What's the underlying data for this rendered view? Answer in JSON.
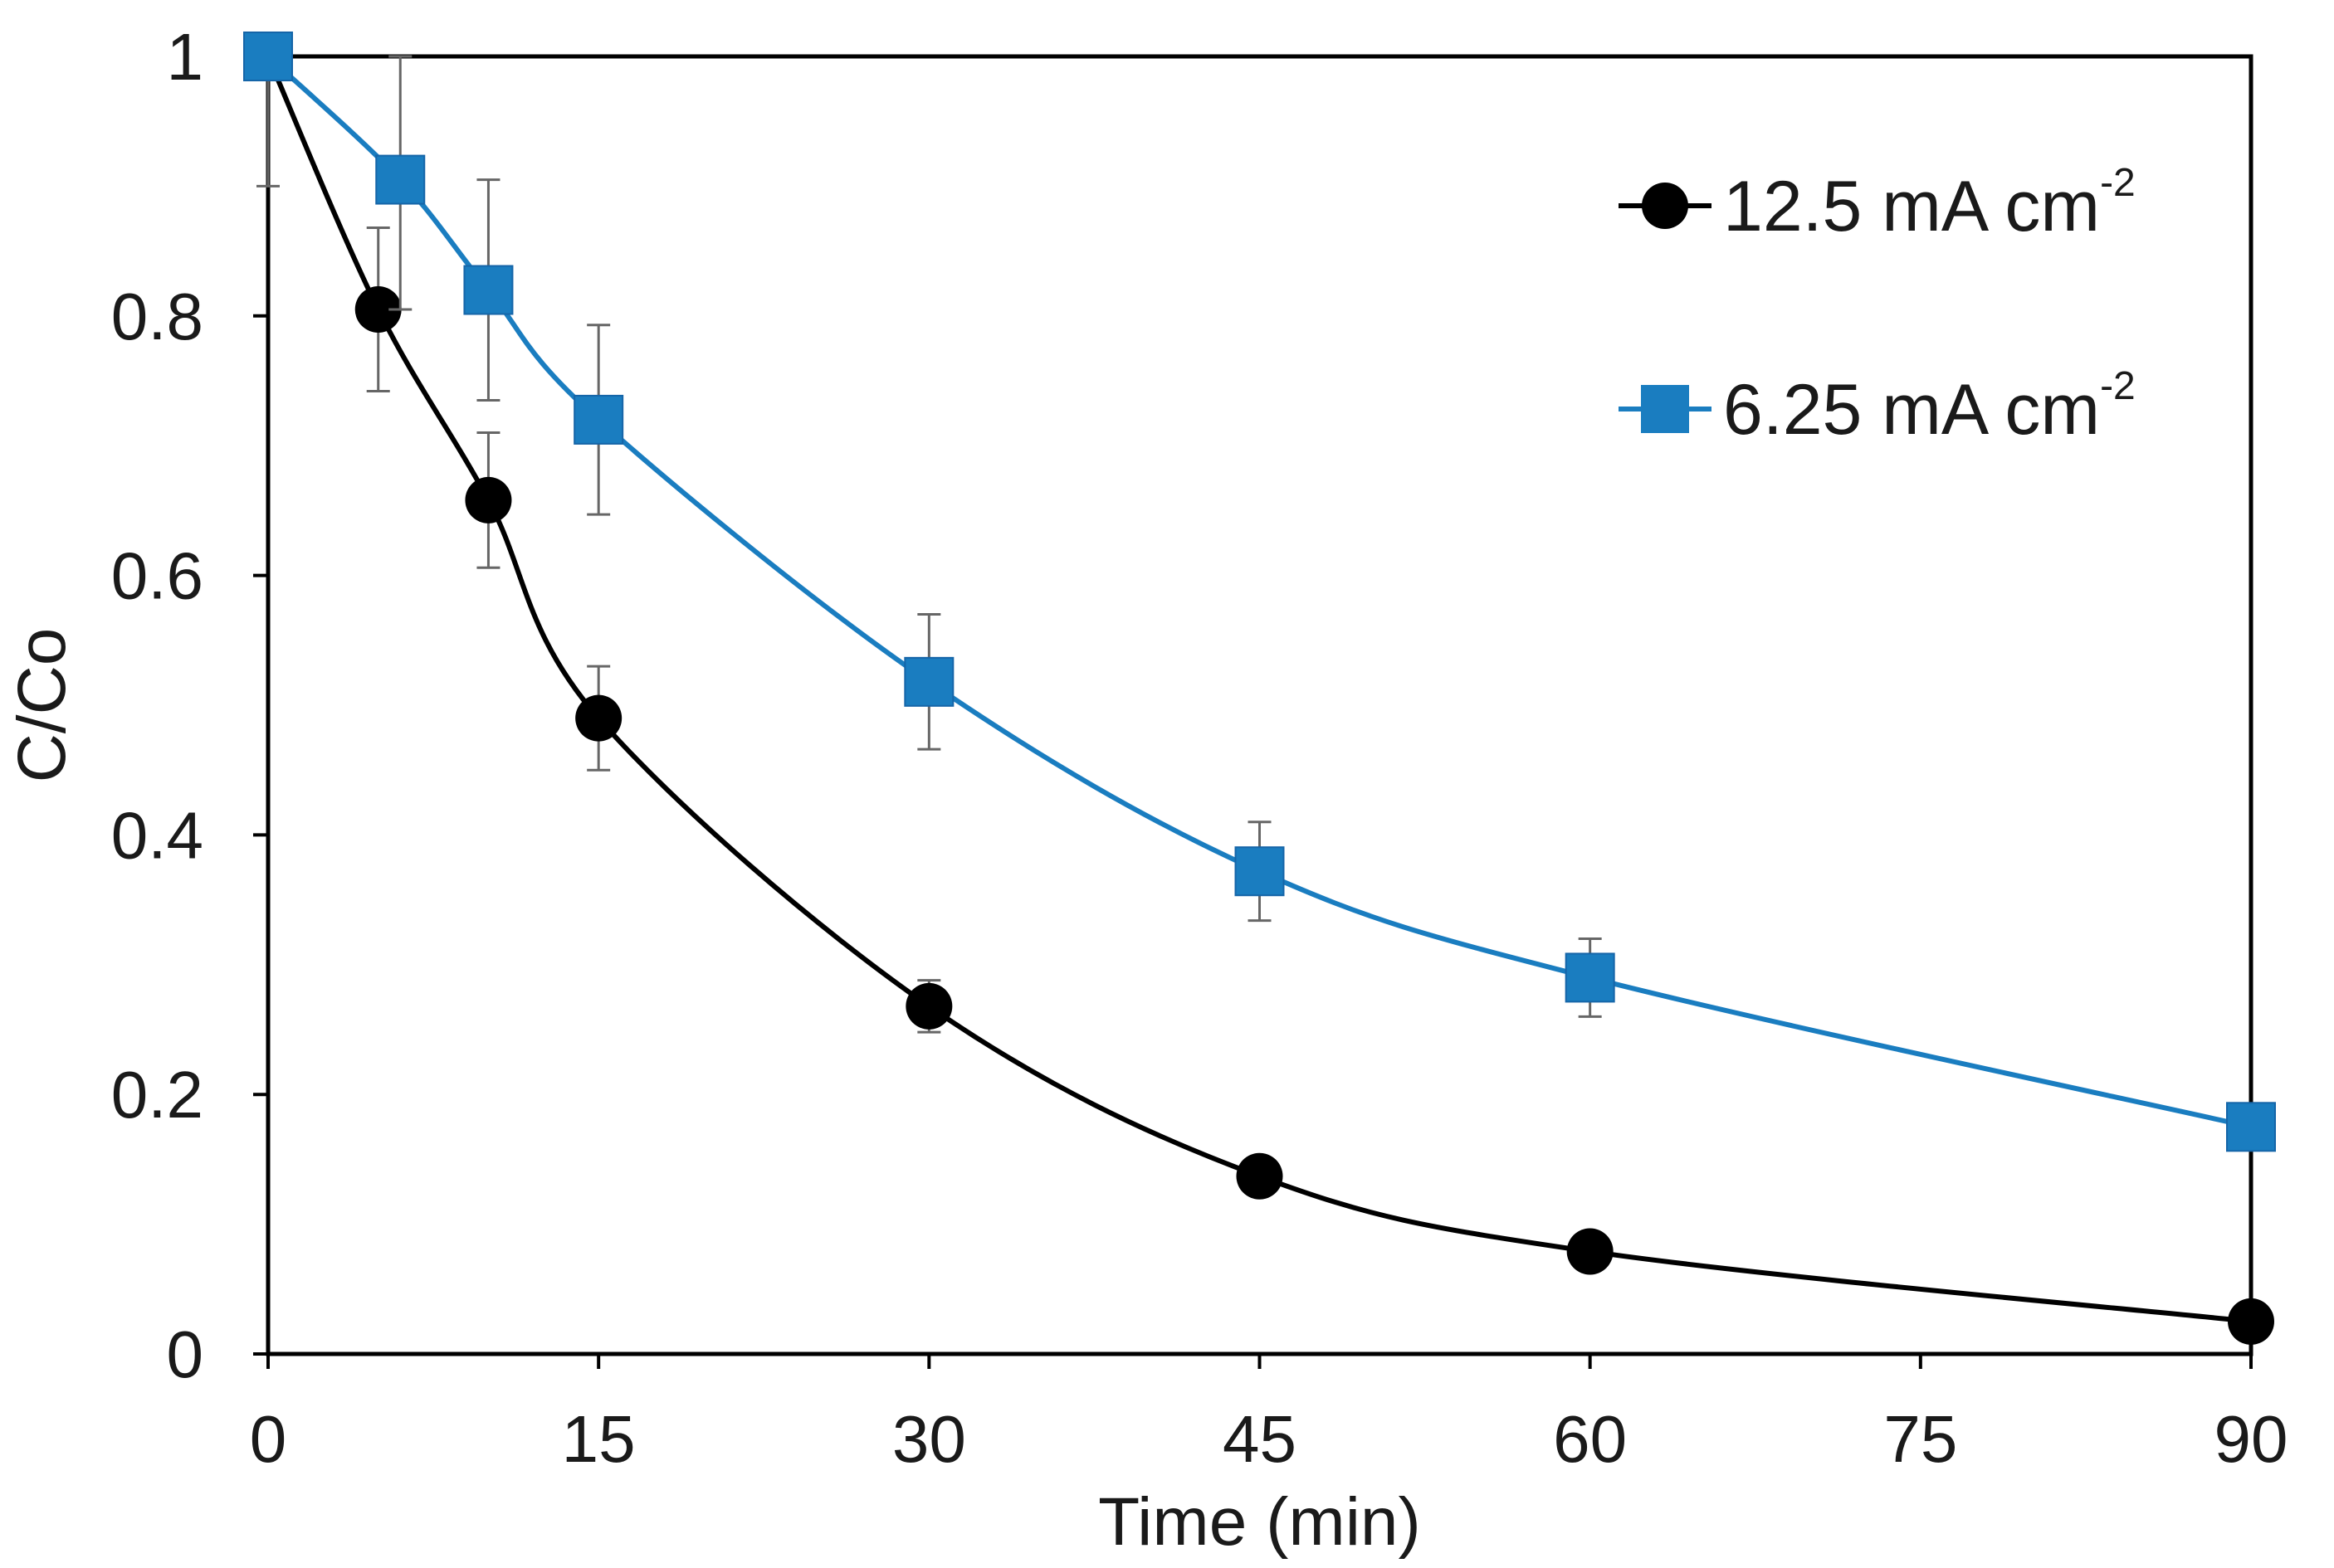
{
  "chart_data": {
    "type": "line",
    "title": "",
    "xlabel": "Time (min)",
    "ylabel": "C/Co",
    "xlim": [
      0,
      90
    ],
    "ylim": [
      0,
      1
    ],
    "xticks": [
      0,
      15,
      30,
      45,
      60,
      75,
      90
    ],
    "yticks": [
      0,
      0.2,
      0.4,
      0.6,
      0.8,
      1
    ],
    "ytick_labels": [
      "0",
      "0.2",
      "0.4",
      "0.6",
      "0.8",
      "1"
    ],
    "grid": false,
    "legend_position": "top-right",
    "series": [
      {
        "name": "12.5 mA cm",
        "name_superscript": "-2",
        "color": "#000000",
        "marker": "circle",
        "x": [
          0,
          5,
          10,
          15,
          30,
          45,
          60,
          90
        ],
        "y": [
          1.0,
          0.805,
          0.658,
          0.49,
          0.268,
          0.137,
          0.079,
          0.025
        ],
        "error": [
          0.1,
          0.063,
          0.052,
          0.04,
          0.02,
          0.01,
          0.008,
          0.005
        ]
      },
      {
        "name": "6.25 mA cm",
        "name_superscript": "-2",
        "color": "#1a7dc0",
        "marker": "square",
        "x": [
          0,
          6,
          10,
          15,
          30,
          45,
          60,
          90
        ],
        "y": [
          1.0,
          0.905,
          0.82,
          0.72,
          0.518,
          0.372,
          0.29,
          0.175
        ],
        "error": [
          0.01,
          0.1,
          0.085,
          0.073,
          0.052,
          0.038,
          0.03,
          0.008
        ]
      }
    ]
  }
}
